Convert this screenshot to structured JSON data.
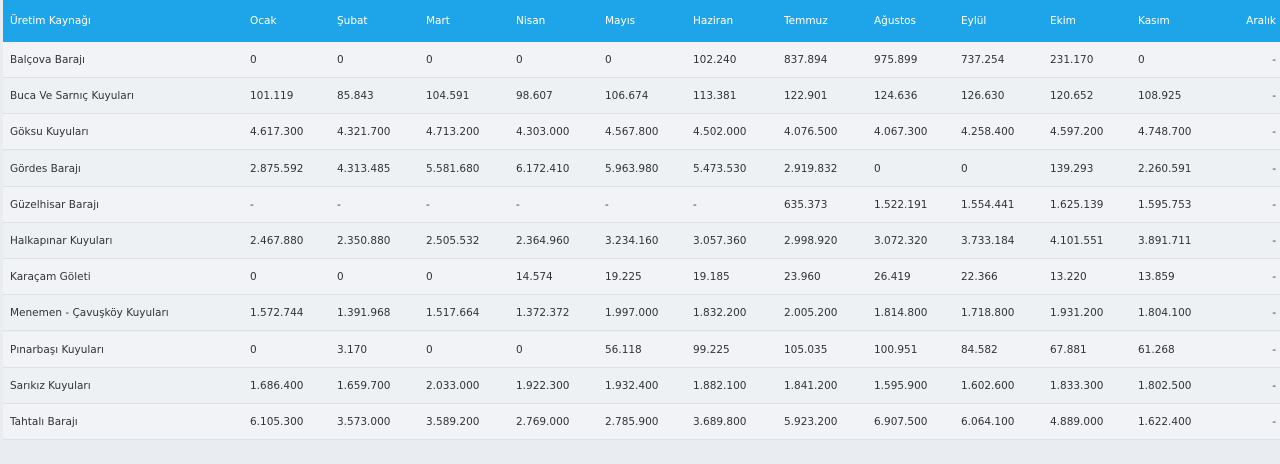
{
  "table": {
    "header": [
      "Üretim Kaynağı",
      "Ocak",
      "Şubat",
      "Mart",
      "Nisan",
      "Mayıs",
      "Haziran",
      "Temmuz",
      "Ağustos",
      "Eylül",
      "Ekim",
      "Kasım",
      "Aralık"
    ],
    "rows": [
      [
        "Balçova Barajı",
        "0",
        "0",
        "0",
        "0",
        "0",
        "102.240",
        "837.894",
        "975.899",
        "737.254",
        "231.170",
        "0",
        "-"
      ],
      [
        "Buca Ve Sarnıç Kuyuları",
        "101.119",
        "85.843",
        "104.591",
        "98.607",
        "106.674",
        "113.381",
        "122.901",
        "124.636",
        "126.630",
        "120.652",
        "108.925",
        "-"
      ],
      [
        "Göksu Kuyuları",
        "4.617.300",
        "4.321.700",
        "4.713.200",
        "4.303.000",
        "4.567.800",
        "4.502.000",
        "4.076.500",
        "4.067.300",
        "4.258.400",
        "4.597.200",
        "4.748.700",
        "-"
      ],
      [
        "Gördes Barajı",
        "2.875.592",
        "4.313.485",
        "5.581.680",
        "6.172.410",
        "5.963.980",
        "5.473.530",
        "2.919.832",
        "0",
        "0",
        "139.293",
        "2.260.591",
        "-"
      ],
      [
        "Güzelhisar Barajı",
        "-",
        "-",
        "-",
        "-",
        "-",
        "-",
        "635.373",
        "1.522.191",
        "1.554.441",
        "1.625.139",
        "1.595.753",
        "-"
      ],
      [
        "Halkapınar Kuyuları",
        "2.467.880",
        "2.350.880",
        "2.505.532",
        "2.364.960",
        "3.234.160",
        "3.057.360",
        "2.998.920",
        "3.072.320",
        "3.733.184",
        "4.101.551",
        "3.891.711",
        "-"
      ],
      [
        "Karaçam Göleti",
        "0",
        "0",
        "0",
        "14.574",
        "19.225",
        "19.185",
        "23.960",
        "26.419",
        "22.366",
        "13.220",
        "13.859",
        "-"
      ],
      [
        "Menemen - Çavuşköy Kuyuları",
        "1.572.744",
        "1.391.968",
        "1.517.664",
        "1.372.372",
        "1.997.000",
        "1.832.200",
        "2.005.200",
        "1.814.800",
        "1.718.800",
        "1.931.200",
        "1.804.100",
        "-"
      ],
      [
        "Pınarbaşı Kuyuları",
        "0",
        "3.170",
        "0",
        "0",
        "56.118",
        "99.225",
        "105.035",
        "100.951",
        "84.582",
        "67.881",
        "61.268",
        "-"
      ],
      [
        "Sarıkız Kuyuları",
        "1.686.400",
        "1.659.700",
        "2.033.000",
        "1.922.300",
        "1.932.400",
        "1.882.100",
        "1.841.200",
        "1.595.900",
        "1.602.600",
        "1.833.300",
        "1.802.500",
        "-"
      ],
      [
        "Tahtalı Barajı",
        "6.105.300",
        "3.573.000",
        "3.589.200",
        "2.769.000",
        "2.785.900",
        "3.689.800",
        "5.923.200",
        "6.907.500",
        "6.064.100",
        "4.889.000",
        "1.622.400",
        "-"
      ]
    ]
  }
}
